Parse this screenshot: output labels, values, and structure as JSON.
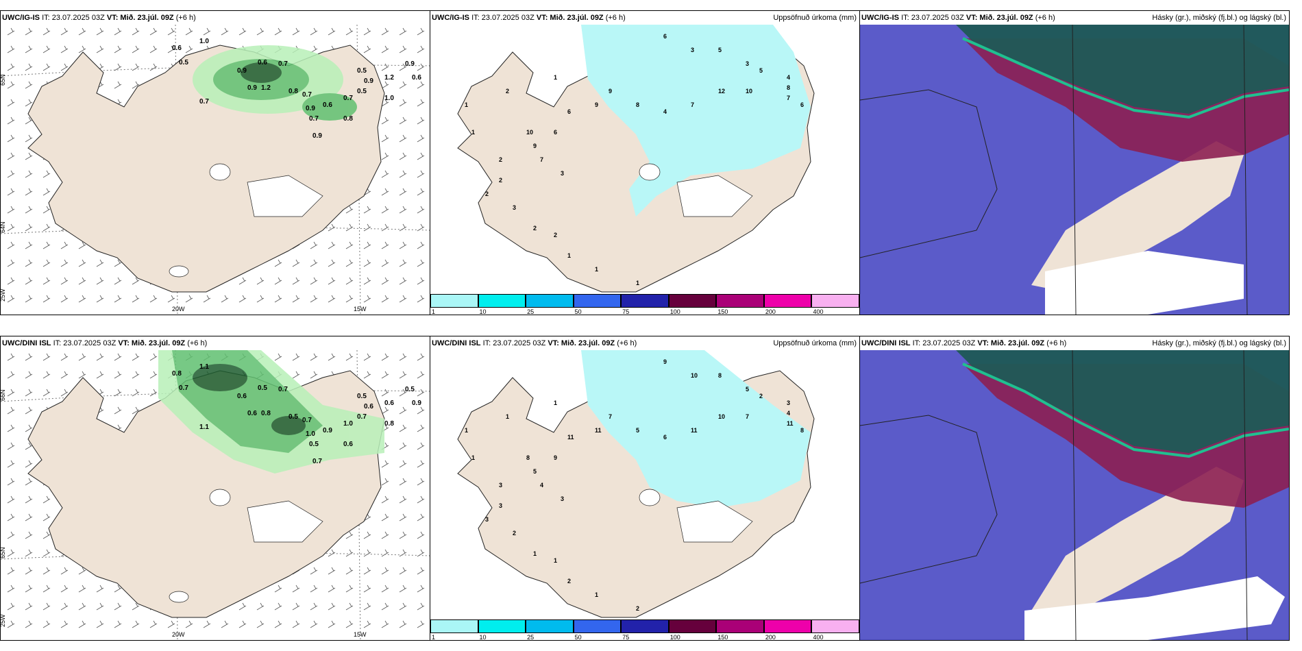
{
  "panels": {
    "p1": {
      "model": "UWC/IG-IS",
      "it": "IT: 23.07.2025 03Z",
      "vt": "VT: Mið. 23.júl. 09Z",
      "lead": "(+6 h)",
      "lat_labels": [
        "65N",
        "64N",
        "25W"
      ],
      "lon_labels": [
        "20W",
        "15W"
      ],
      "precip_labels": [
        "1.0",
        "0.6",
        "0.5",
        "0.7",
        "0.9",
        "0.6",
        "0.7",
        "1.2",
        "0.9",
        "0.8",
        "0.7",
        "0.9",
        "0.6",
        "0.7",
        "0.5",
        "1.2",
        "0.9",
        "0.9",
        "1.0",
        "0.8",
        "0.9",
        "0.7",
        "0.5",
        "0.6"
      ]
    },
    "p2": {
      "model": "UWC/IG-IS",
      "it": "IT: 23.07.2025 03Z",
      "vt": "VT: Mið. 23.júl. 09Z",
      "lead": "(+6 h)",
      "title_right": "Uppsöfnuð úrkoma (mm)",
      "amount_labels": [
        "6",
        "3",
        "5",
        "3",
        "5",
        "4",
        "8",
        "7",
        "6",
        "10",
        "12",
        "7",
        "4",
        "8",
        "9",
        "9",
        "6",
        "6",
        "10",
        "9",
        "7",
        "3",
        "2",
        "2",
        "3",
        "2",
        "2",
        "1",
        "1",
        "1",
        "2",
        "1",
        "1",
        "2",
        "1"
      ]
    },
    "p3": {
      "model": "UWC/IG-IS",
      "it": "IT: 23.07.2025 03Z",
      "vt": "VT: Mið. 23.júl. 09Z",
      "lead": "(+6 h)",
      "title_right": "Hásky (gr.), miðský (fj.bl.) og lágský (bl.)"
    },
    "p4": {
      "model": "UWC/DINI ISL",
      "it": "IT: 23.07.2025 03Z",
      "vt": "VT: Mið. 23.júl. 09Z",
      "lead": "(+6 h)",
      "lat_labels": [
        "66N",
        "65N",
        "25W"
      ],
      "lon_labels": [
        "20W",
        "15W"
      ],
      "precip_labels": [
        "1.1",
        "0.8",
        "0.7",
        "1.1",
        "0.6",
        "0.5",
        "0.7",
        "0.8",
        "0.6",
        "0.5",
        "0.7",
        "1.0",
        "0.9",
        "1.0",
        "0.7",
        "0.6",
        "0.5",
        "0.6",
        "0.8",
        "0.6",
        "0.7",
        "0.5",
        "0.5",
        "0.9"
      ]
    },
    "p5": {
      "model": "UWC/DINI ISL",
      "it": "IT: 23.07.2025 03Z",
      "vt": "VT: Mið. 23.júl. 09Z",
      "lead": "(+6 h)",
      "title_right": "Uppsöfnuð úrkoma (mm)",
      "amount_labels": [
        "9",
        "10",
        "8",
        "5",
        "2",
        "3",
        "4",
        "11",
        "8",
        "7",
        "10",
        "11",
        "6",
        "5",
        "7",
        "11",
        "11",
        "9",
        "8",
        "5",
        "4",
        "3",
        "3",
        "3",
        "2",
        "1",
        "1",
        "2",
        "1",
        "2",
        "3",
        "1",
        "1",
        "1",
        "1"
      ]
    },
    "p6": {
      "model": "UWC/DINI ISL",
      "it": "IT: 23.07.2025 03Z",
      "vt": "VT: Mið. 23.júl. 09Z",
      "lead": "(+6 h)",
      "title_right": "Hásky (gr.), miðský (fj.bl.) og lágský (bl.)"
    }
  },
  "colorbar": {
    "labels": [
      "1",
      "10",
      "25",
      "50",
      "75",
      "100",
      "150",
      "200",
      "400"
    ],
    "colors": [
      "#aaf6f6",
      "#00eeee",
      "#00bbee",
      "#3366ee",
      "#2222aa",
      "#66003c",
      "#aa0077",
      "#ee00aa",
      "#f8b0f0"
    ]
  },
  "colors": {
    "land": "#efe3d6",
    "precip_light": "#b8f0b8",
    "precip_mid": "#60c070",
    "precip_dark": "#1d5c2e",
    "precip_accum": "#b9f7f7",
    "cloud_low": "#5b5bc9",
    "cloud_mid": "#8c1f52",
    "cloud_high": "#1f5a56"
  }
}
